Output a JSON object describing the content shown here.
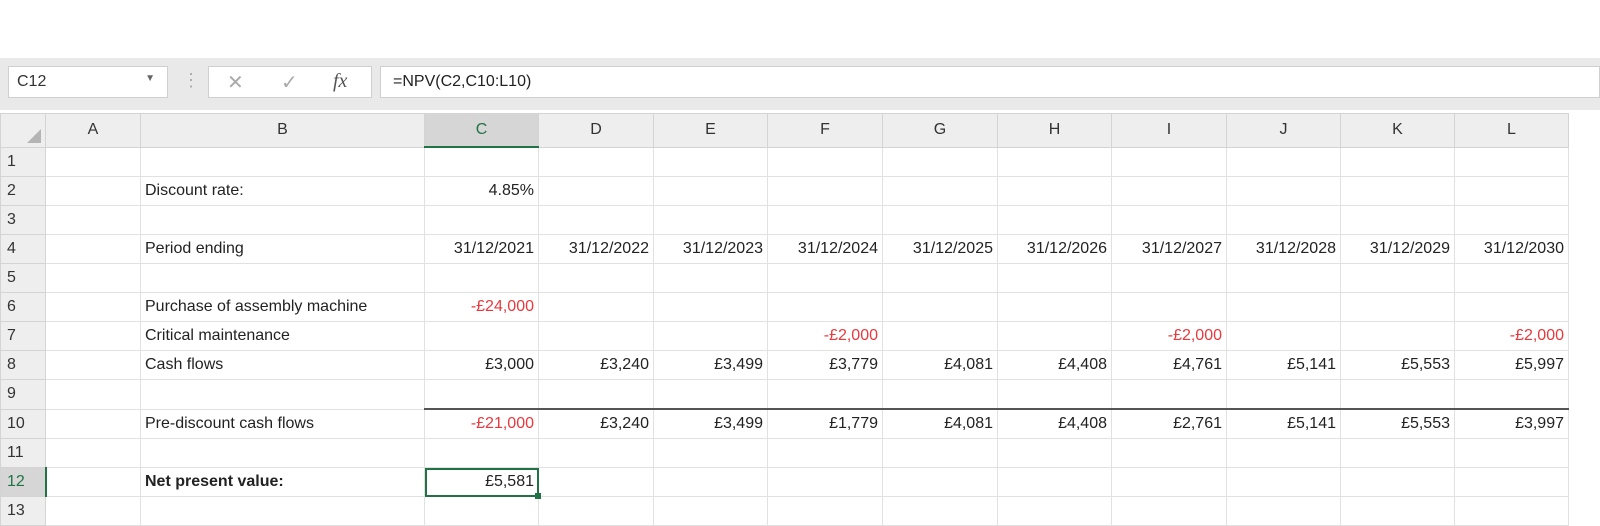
{
  "name_box": "C12",
  "formula": "=NPV(C2,C10:L10)",
  "icons": {
    "cancel": "x-icon",
    "enter": "check-icon",
    "function": "fx-icon"
  },
  "columns": [
    "A",
    "B",
    "C",
    "D",
    "E",
    "F",
    "G",
    "H",
    "I",
    "J",
    "K",
    "L"
  ],
  "selected_cell": "C12",
  "rows": [
    {
      "n": "1",
      "label": "",
      "values": [
        "",
        "",
        "",
        "",
        "",
        "",
        "",
        "",
        "",
        ""
      ]
    },
    {
      "n": "2",
      "label": "Discount rate:",
      "values": [
        "4.85%",
        "",
        "",
        "",
        "",
        "",
        "",
        "",
        "",
        ""
      ]
    },
    {
      "n": "3",
      "label": "",
      "values": [
        "",
        "",
        "",
        "",
        "",
        "",
        "",
        "",
        "",
        ""
      ]
    },
    {
      "n": "4",
      "label": "Period ending",
      "values": [
        "31/12/2021",
        "31/12/2022",
        "31/12/2023",
        "31/12/2024",
        "31/12/2025",
        "31/12/2026",
        "31/12/2027",
        "31/12/2028",
        "31/12/2029",
        "31/12/2030"
      ]
    },
    {
      "n": "5",
      "label": "",
      "values": [
        "",
        "",
        "",
        "",
        "",
        "",
        "",
        "",
        "",
        ""
      ]
    },
    {
      "n": "6",
      "label": "Purchase of assembly machine",
      "values": [
        "-£24,000",
        "",
        "",
        "",
        "",
        "",
        "",
        "",
        "",
        ""
      ]
    },
    {
      "n": "7",
      "label": "Critical maintenance",
      "values": [
        "",
        "",
        "",
        "-£2,000",
        "",
        "",
        "-£2,000",
        "",
        "",
        "-£2,000"
      ]
    },
    {
      "n": "8",
      "label": "Cash flows",
      "values": [
        "£3,000",
        "£3,240",
        "£3,499",
        "£3,779",
        "£4,081",
        "£4,408",
        "£4,761",
        "£5,141",
        "£5,553",
        "£5,997"
      ]
    },
    {
      "n": "9",
      "label": "",
      "values": [
        "",
        "",
        "",
        "",
        "",
        "",
        "",
        "",
        "",
        ""
      ]
    },
    {
      "n": "10",
      "label": "Pre-discount cash flows",
      "values": [
        "-£21,000",
        "£3,240",
        "£3,499",
        "£1,779",
        "£4,081",
        "£4,408",
        "£2,761",
        "£5,141",
        "£5,553",
        "£3,997"
      ]
    },
    {
      "n": "11",
      "label": "",
      "values": [
        "",
        "",
        "",
        "",
        "",
        "",
        "",
        "",
        "",
        ""
      ]
    },
    {
      "n": "12",
      "label": "Net present value:",
      "values": [
        "£5,581",
        "",
        "",
        "",
        "",
        "",
        "",
        "",
        "",
        ""
      ]
    },
    {
      "n": "13",
      "label": "",
      "values": [
        "",
        "",
        "",
        "",
        "",
        "",
        "",
        "",
        "",
        ""
      ]
    }
  ],
  "colors": {
    "negative": "#e8383d",
    "selection": "#217346"
  }
}
